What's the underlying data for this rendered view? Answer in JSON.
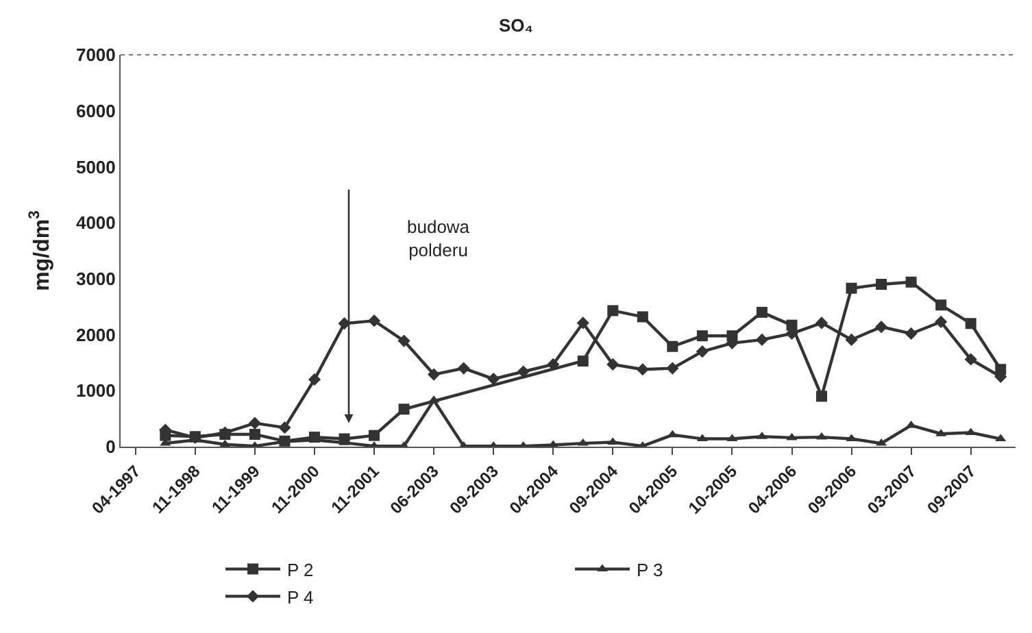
{
  "chart_data": {
    "type": "line",
    "title": "SO₄",
    "ylabel": "mg/dm$^{3}$",
    "categories": [
      "04-1997",
      null,
      "11-1998",
      null,
      "11-1999",
      null,
      "11-2000",
      null,
      "11-2001",
      null,
      "06-2003",
      null,
      "09-2003",
      null,
      "04-2004",
      null,
      "09-2004",
      null,
      "04-2005",
      null,
      "10-2005",
      null,
      "04-2006",
      null,
      "09-2006",
      null,
      "03-2007",
      null,
      "09-2007",
      null
    ],
    "series": [
      {
        "name": "P 2",
        "color": "#333333",
        "marker": "square",
        "values": [
          null,
          200,
          180,
          220,
          220,
          100,
          170,
          140,
          200,
          670,
          null,
          null,
          null,
          null,
          null,
          1530,
          2430,
          2320,
          1790,
          1980,
          1980,
          2400,
          2170,
          900,
          2830,
          2900,
          2940,
          2530,
          2200,
          1380
        ]
      },
      {
        "name": "P 3",
        "color": "#333333",
        "marker": "triangle",
        "values": [
          null,
          60,
          120,
          40,
          10,
          90,
          120,
          70,
          10,
          10,
          830,
          10,
          10,
          10,
          30,
          60,
          80,
          10,
          210,
          140,
          140,
          180,
          160,
          170,
          140,
          60,
          380,
          230,
          250,
          140
        ]
      },
      {
        "name": "P 4",
        "color": "#333333",
        "marker": "diamond",
        "values": [
          null,
          300,
          160,
          250,
          420,
          340,
          1200,
          2200,
          2250,
          1890,
          1290,
          1400,
          1210,
          1340,
          1470,
          2210,
          1470,
          1380,
          1400,
          1700,
          1850,
          1910,
          2020,
          2210,
          1910,
          2140,
          2020,
          2230,
          1560,
          1250
        ]
      }
    ],
    "ylim": [
      0,
      7000
    ],
    "yticks": [
      0,
      1000,
      2000,
      3000,
      4000,
      5000,
      6000,
      7000
    ],
    "legend": "bottom",
    "line_style": "solid",
    "annotations": [
      "budowa\npolderu"
    ]
  }
}
